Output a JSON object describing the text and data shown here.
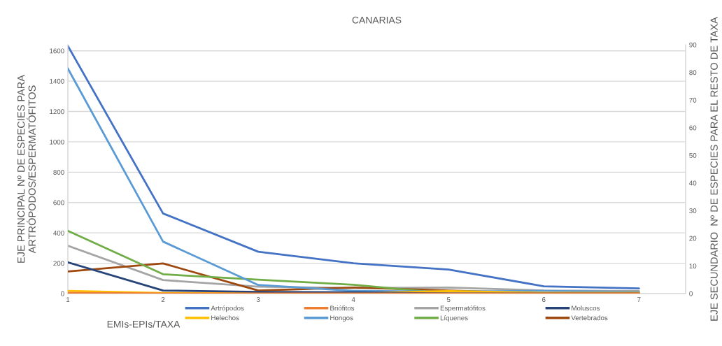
{
  "chart_data": {
    "type": "line",
    "title": "CANARIAS",
    "xlabel": "EMIs-EPIs/TAXA",
    "ylabel": "EJE PRINCIPAL Nº DE ESPECIES PARA\nARTRÓPODOS/ESPERMATÓFITOS",
    "y2label": "EJE SECUNDARIO  Nº DE ESPECIES PARA EL RESTO DE TAXA",
    "categories": [
      "1",
      "2",
      "3",
      "4",
      "5",
      "6",
      "7"
    ],
    "series": [
      {
        "name": "Artrópodos",
        "color": "#4472c4",
        "values": [
          1632,
          528,
          276,
          200,
          158,
          48,
          34
        ]
      },
      {
        "name": "Briófitos",
        "color": "#ed7d31",
        "axis": "y2",
        "values": [
          0.3,
          0,
          0,
          0,
          0,
          0,
          0
        ]
      },
      {
        "name": "Espermatófitos",
        "color": "#a5a5a5",
        "values": [
          315,
          89,
          46,
          36,
          40,
          20,
          17
        ]
      },
      {
        "name": "Moluscos",
        "color": "#264478",
        "axis": "y2",
        "values": [
          11.3,
          1.1,
          0.6,
          0.5,
          0,
          0,
          0
        ]
      },
      {
        "name": "Helechos",
        "color": "#ffc000",
        "axis": "y2",
        "values": [
          1.0,
          0.2,
          0.2,
          0.2,
          0.9,
          0.3,
          0.3
        ]
      },
      {
        "name": "Hongos",
        "color": "#5b9bd5",
        "axis": "y2",
        "values": [
          81.4,
          18.8,
          3.1,
          1.0,
          0.7,
          1.0,
          0.6
        ]
      },
      {
        "name": "Líquenes",
        "color": "#70ad47",
        "axis": "y2",
        "values": [
          22.7,
          7.0,
          5.0,
          3.2,
          0,
          0,
          0
        ]
      },
      {
        "name": "Vertebrados",
        "color": "#9e480e",
        "axis": "y2",
        "values": [
          8.0,
          10.9,
          1.1,
          2.2,
          1.1,
          0.1,
          0
        ]
      }
    ],
    "ylim": [
      0,
      1640
    ],
    "yticks": [
      0,
      200,
      400,
      600,
      800,
      1000,
      1200,
      1400,
      1600
    ],
    "y2lim": [
      0,
      90
    ],
    "y2ticks": [
      0,
      10,
      20,
      30,
      40,
      50,
      60,
      70,
      80,
      90
    ],
    "grid": "y",
    "legend": "bottom",
    "marker": "none",
    "line_style": "solid"
  }
}
